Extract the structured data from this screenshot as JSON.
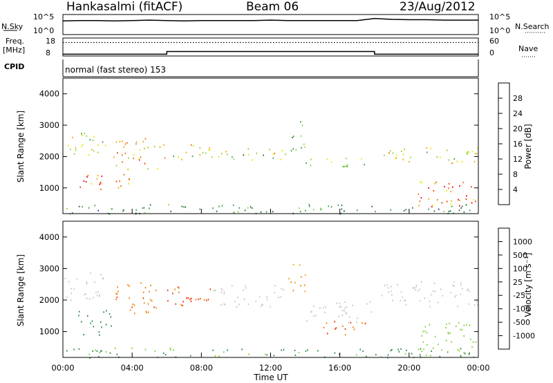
{
  "header": {
    "station": "Hankasalmi (fitACF)",
    "beam": "Beam 06",
    "date": "23/Aug/2012"
  },
  "top_panels": {
    "nsky_label": "N.Sky",
    "nsearch_label": "N.Search",
    "noise_left_ticks": [
      "10^5",
      "10^0"
    ],
    "noise_right_ticks": [
      "10^5",
      "10^0"
    ],
    "freq_label_1": "Freq.",
    "freq_label_2": "[MHz]",
    "freq_ticks": [
      "18",
      "8"
    ],
    "nave_label": "Nave",
    "nave_ticks": [
      "60",
      "0"
    ],
    "cpid_label": "CPID",
    "cpid_text": "normal (fast stereo) 153"
  },
  "colorbars": {
    "power": {
      "label": "Power [dB]",
      "tick_labels": [
        "28",
        "24",
        "20",
        "16",
        "12",
        "8",
        "4"
      ],
      "colors": [
        "#0000ff",
        "#1a3f99",
        "#2f6b3f",
        "#3a9f45",
        "#8fd13a",
        "#e8e800",
        "#f0a800",
        "#f07000",
        "#f03a00",
        "#ff0000"
      ]
    },
    "velocity": {
      "label": "Velocity [m s⁻¹]",
      "tick_labels": [
        "1000",
        "500",
        "100",
        "25",
        "-25",
        "-100",
        "-500",
        "-1000"
      ],
      "colors": [
        "#1030c0",
        "#2060a0",
        "#2d8a4a",
        "#3caa3c",
        "#7ed23a",
        "#c8c8c0",
        "#c8c8c0",
        "#f0a000",
        "#f08000",
        "#f05000",
        "#f03000",
        "#ff0000"
      ]
    }
  },
  "chart_data": [
    {
      "type": "line",
      "title": "",
      "series": [
        {
          "name": "N.Sky",
          "values": [
            3.4,
            3.5,
            3.5,
            3.4,
            3.5,
            3.6,
            3.5,
            3.4,
            3.5,
            3.5,
            3.5,
            3.5,
            3.6,
            3.5,
            3.5,
            3.5,
            3.5,
            3.5,
            4.0,
            3.8,
            3.7,
            3.7,
            3.6,
            3.6,
            3.6
          ]
        }
      ],
      "x": [
        "00:00",
        "01:00",
        "02:00",
        "03:00",
        "04:00",
        "05:00",
        "06:00",
        "07:00",
        "08:00",
        "09:00",
        "10:00",
        "11:00",
        "12:00",
        "13:00",
        "14:00",
        "15:00",
        "16:00",
        "17:00",
        "18:00",
        "19:00",
        "20:00",
        "21:00",
        "22:00",
        "23:00",
        "00:00"
      ],
      "ylabel": "N.Sky",
      "y2label": "N.Search"
    },
    {
      "type": "line",
      "series": [
        {
          "name": "Freq.",
          "values": [
            9,
            9,
            9,
            9,
            9,
            9,
            10.5,
            10.5,
            10.5,
            10.5,
            10.5,
            10.5,
            10.5,
            10.5,
            10.5,
            10.5,
            10.5,
            10.5,
            9,
            9,
            9,
            9,
            9,
            9,
            9
          ]
        },
        {
          "name": "Nave",
          "values": [
            45,
            45,
            45,
            45,
            45,
            45,
            45,
            45,
            45,
            45,
            45,
            45,
            45,
            45,
            45,
            45,
            45,
            45,
            45,
            45,
            45,
            45,
            45,
            45,
            45
          ]
        }
      ],
      "ylim": [
        8,
        18
      ],
      "y2lim": [
        0,
        60
      ],
      "ylabel": "Freq. [MHz]",
      "y2label": "Nave"
    },
    {
      "type": "heatmap",
      "title": "",
      "ylabel": "Slant Range [km]",
      "ylim": [
        180,
        4500
      ],
      "yticks": [
        "1000",
        "2000",
        "3000",
        "4000"
      ],
      "xlim": [
        0,
        24
      ],
      "colorbar": "Power [dB]",
      "bands": [
        {
          "t": [
            0,
            2.5
          ],
          "r": [
            2000,
            2800
          ],
          "v": 16
        },
        {
          "t": [
            0.8,
            2.8
          ],
          "r": [
            900,
            1500
          ],
          "v": 26
        },
        {
          "t": [
            2.8,
            5.5
          ],
          "r": [
            1600,
            2600
          ],
          "v": 20
        },
        {
          "t": [
            3.0,
            4.0
          ],
          "r": [
            1000,
            1700
          ],
          "v": 24
        },
        {
          "t": [
            5.5,
            8.5
          ],
          "r": [
            1900,
            2400
          ],
          "v": 18
        },
        {
          "t": [
            8.5,
            13.0
          ],
          "r": [
            1900,
            2300
          ],
          "v": 16
        },
        {
          "t": [
            13.0,
            14.0
          ],
          "r": [
            2200,
            3200
          ],
          "v": 12
        },
        {
          "t": [
            14.0,
            18.0
          ],
          "r": [
            1700,
            2000
          ],
          "v": 14
        },
        {
          "t": [
            18.0,
            24.0
          ],
          "r": [
            1800,
            2300
          ],
          "v": 16
        },
        {
          "t": [
            20.5,
            24.0
          ],
          "r": [
            400,
            1300
          ],
          "v": 26
        },
        {
          "t": [
            0,
            24
          ],
          "r": [
            180,
            500
          ],
          "v": 10
        }
      ]
    },
    {
      "type": "heatmap",
      "title": "",
      "ylabel": "Slant Range [km]",
      "xlabel": "Time UT",
      "ylim": [
        180,
        4500
      ],
      "yticks": [
        "1000",
        "2000",
        "3000",
        "4000"
      ],
      "xlim": [
        0,
        24
      ],
      "xticks": [
        "00:00",
        "04:00",
        "08:00",
        "12:00",
        "16:00",
        "20:00",
        "00:00"
      ],
      "colorbar": "Velocity [m s⁻¹]",
      "bands": [
        {
          "t": [
            0,
            2.5
          ],
          "r": [
            2000,
            2900
          ],
          "v": 0
        },
        {
          "t": [
            0.8,
            2.8
          ],
          "r": [
            900,
            1700
          ],
          "v": 300
        },
        {
          "t": [
            2.8,
            5.5
          ],
          "r": [
            1600,
            2600
          ],
          "v": -400
        },
        {
          "t": [
            5.5,
            8.5
          ],
          "r": [
            1800,
            2500
          ],
          "v": -600
        },
        {
          "t": [
            8.5,
            13.0
          ],
          "r": [
            1800,
            2500
          ],
          "v": 0
        },
        {
          "t": [
            13.0,
            14.0
          ],
          "r": [
            2200,
            3200
          ],
          "v": -100
        },
        {
          "t": [
            14.0,
            18.0
          ],
          "r": [
            1300,
            2000
          ],
          "v": 0
        },
        {
          "t": [
            15.0,
            17.5
          ],
          "r": [
            900,
            1400
          ],
          "v": -500
        },
        {
          "t": [
            18.0,
            24.0
          ],
          "r": [
            1800,
            2600
          ],
          "v": 0
        },
        {
          "t": [
            20.5,
            24.0
          ],
          "r": [
            400,
            1300
          ],
          "v": 50
        },
        {
          "t": [
            0,
            24
          ],
          "r": [
            180,
            500
          ],
          "v": 100
        }
      ]
    }
  ]
}
